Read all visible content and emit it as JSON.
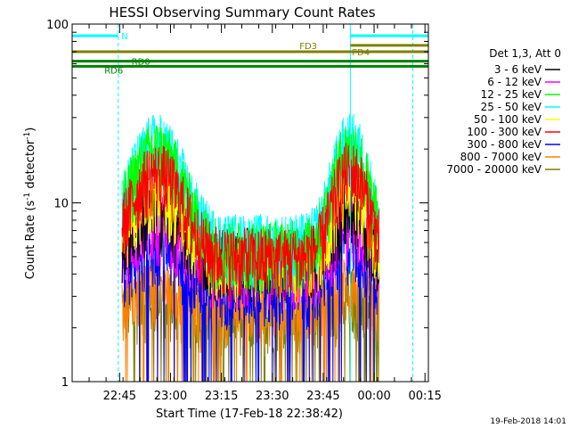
{
  "chart_data": {
    "type": "line",
    "title": "HESSI Observing Summary Count Rates",
    "xlabel": "Start Time (17-Feb-18 22:38:42)",
    "ylabel_main": "Count Rate (s",
    "ylabel_sup1": "-1",
    "ylabel_mid": " detector",
    "ylabel_sup2": "-1",
    "ylabel_end": ")",
    "yscale": "log",
    "ylim": [
      1,
      100
    ],
    "xlim_minutes": [
      -7,
      98
    ],
    "x_tick_minutes": [
      7,
      22,
      37,
      52,
      67,
      82,
      97
    ],
    "x_tick_labels": [
      "22:45",
      "23:00",
      "23:15",
      "23:30",
      "23:45",
      "00:00",
      "00:15"
    ],
    "y_tick_labels": [
      "1",
      "10",
      "100"
    ],
    "y_tick_values": [
      1,
      10,
      100
    ],
    "legend_title": "Det 1,3, Att 0",
    "legend_position": "right",
    "series": [
      {
        "name": "3 - 6 keV",
        "color": "#000000",
        "peak": 9.0,
        "base": 5.0
      },
      {
        "name": "6 - 12 keV",
        "color": "#ff00ff",
        "peak": 8.0,
        "base": 4.5
      },
      {
        "name": "12 - 25 keV",
        "color": "#00ff00",
        "peak": 20.0,
        "base": 5.5
      },
      {
        "name": "25 - 50 keV",
        "color": "#00ffff",
        "peak": 22.0,
        "base": 6.0
      },
      {
        "name": "50 - 100 keV",
        "color": "#ffff00",
        "peak": 12.0,
        "base": 5.0
      },
      {
        "name": "100 - 300 keV",
        "color": "#ff0000",
        "peak": 15.0,
        "base": 5.0
      },
      {
        "name": "300 - 800 keV",
        "color": "#0000ff",
        "peak": 6.0,
        "base": 3.5
      },
      {
        "name": "800 - 7000 keV",
        "color": "#ff8000",
        "peak": 3.5,
        "base": 2.8
      },
      {
        "name": "7000 - 20000 keV",
        "color": "#808000",
        "peak": 3.0,
        "base": 2.5
      }
    ],
    "data_span_minutes": [
      7.7,
      83.5
    ],
    "hump_centers_minutes": [
      18,
      75
    ],
    "bars": [
      {
        "label": "N",
        "color": "#00ffff",
        "y": 86,
        "segments": [
          [
            -7,
            6.6
          ],
          [
            75,
            98
          ]
        ]
      },
      {
        "label": "FD3",
        "color": "#808000",
        "y": 76,
        "segments": [
          [
            75,
            98
          ]
        ]
      },
      {
        "label": "FD4",
        "color": "#808000",
        "y": 70,
        "segments": [
          [
            -7,
            98
          ]
        ]
      },
      {
        "label": "RD0",
        "color": "#008000",
        "y": 62,
        "segments": [
          [
            -7,
            98
          ]
        ]
      },
      {
        "label": "RD6",
        "color": "#008000",
        "y": 58,
        "segments": [
          [
            -7,
            98
          ]
        ]
      }
    ],
    "vertical_lines_minutes": [
      {
        "x": -7,
        "style": "solid"
      },
      {
        "x": 6.6,
        "style": "dashed"
      },
      {
        "x": 75,
        "style": "solid"
      },
      {
        "x": 93.4,
        "style": "dashed"
      }
    ]
  },
  "footer": {
    "timestamp": "19-Feb-2018 14:01"
  }
}
